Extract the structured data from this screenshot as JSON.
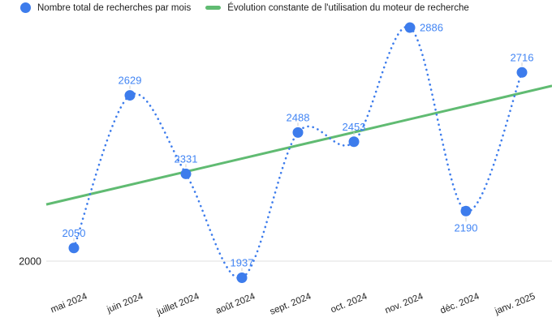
{
  "chart_data": {
    "type": "line",
    "title": "",
    "categories": [
      "mai 2024",
      "juin 2024",
      "juillet 2024",
      "août 2024",
      "sept. 2024",
      "oct. 2024",
      "nov. 2024",
      "déc. 2024",
      "janv. 2025"
    ],
    "series": [
      {
        "name": "Nombre total de recherches par mois",
        "style": "dotted-line-with-points",
        "color": "#3d7cec",
        "values": [
          2050,
          2629,
          2331,
          1937,
          2488,
          2453,
          2886,
          2190,
          2716
        ],
        "label_positions": [
          "top",
          "top",
          "top",
          "top",
          "top",
          "top",
          "right",
          "bottom",
          "top"
        ]
      },
      {
        "name": "Évolution constante de l'utilisation du moteur de recherche",
        "style": "straight-trendline",
        "color": "#60bb72",
        "start_value": 2215,
        "end_value": 2665
      }
    ],
    "y_axis": {
      "visible_tick": "2000",
      "tick_value": 2000,
      "implied_range": [
        1900,
        3000
      ]
    },
    "legend_position": "top",
    "grid": "single horizontal gridline at 2000",
    "colors": {
      "value_label": "#4285f4",
      "gridline": "#e0e0e0",
      "axis_text": "#1f1f1f",
      "label_connector": "#cccccc"
    }
  }
}
